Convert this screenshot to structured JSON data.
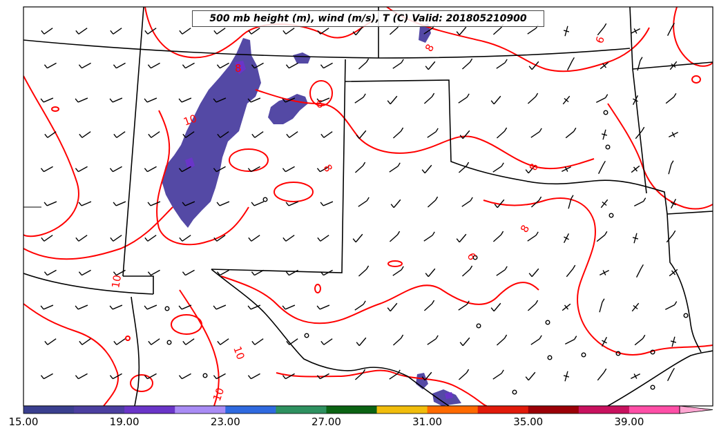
{
  "title": "500 mb height (m), wind (m/s), T (C) Valid: 201805210900",
  "colorbar": {
    "tick_labels": [
      "15.00",
      "19.00",
      "23.00",
      "27.00",
      "31.00",
      "35.00",
      "39.00"
    ],
    "tick_values": [
      15,
      19,
      23,
      27,
      31,
      35,
      39
    ],
    "min": 15,
    "max": 42,
    "step": 2,
    "colors": [
      "#3a3f8f",
      "#4b3fa0",
      "#6a35c8",
      "#a98cf5",
      "#2f6ae0",
      "#2e9160",
      "#0b6313",
      "#f1bd0c",
      "#ff6a00",
      "#e11a0a",
      "#9b0007",
      "#c8115e",
      "#ff4fa7",
      "#ffa6d2"
    ],
    "extend": "max"
  },
  "contour_labels": [
    "10",
    "6",
    "8",
    "6",
    "8",
    "8",
    "8",
    "10",
    "10",
    "10",
    "6",
    "8"
  ],
  "colors": {
    "contour": "#ff0000",
    "borders": "#000000",
    "barbs": "#000000",
    "precip": "#4b3fa0"
  }
}
